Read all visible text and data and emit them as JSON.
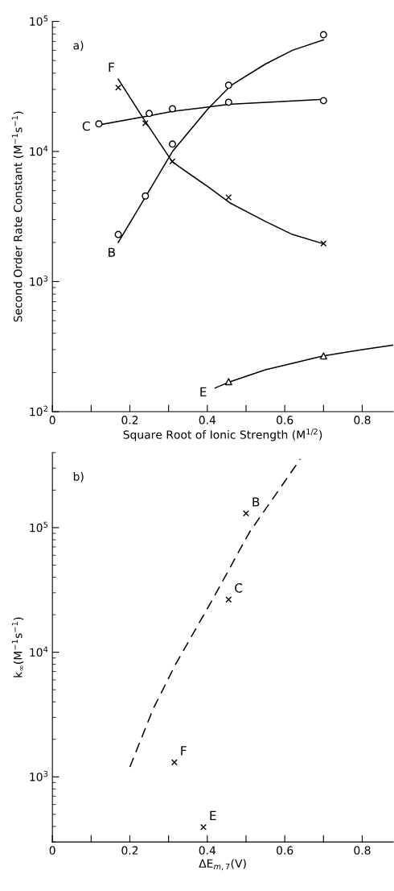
{
  "chart_data": [
    {
      "type": "scatter",
      "xlabel": "Square Root of Ionic Strength (M$^{1/2}$)",
      "ylabel": "Second Order Rate Constant (M$^{−1}$s$^{−1}$)",
      "log": "y",
      "xlim": [
        0,
        0.88
      ],
      "ylim": [
        100,
        100000
      ],
      "xticks": [
        0,
        {
          "value": 0.1,
          "label": null
        },
        0.2,
        {
          "value": 0.3,
          "label": null
        },
        0.4,
        {
          "value": 0.5,
          "label": null
        },
        0.6,
        {
          "value": 0.7,
          "label": null
        },
        0.8
      ],
      "yticks": [
        {
          "value": 100,
          "label": "10$^{2}$"
        },
        {
          "value": 1000,
          "label": "10$^{3}$"
        },
        {
          "value": 10000,
          "label": "10$^{4}$"
        },
        {
          "value": 100000,
          "label": "10$^{5}$"
        }
      ],
      "series": [
        {
          "type": "line",
          "name": "B",
          "color": "#000000",
          "line_style": "solid",
          "x": [
            0.17,
            0.25,
            0.31,
            0.4,
            0.46,
            0.55,
            0.62,
            0.7
          ],
          "values": [
            2000,
            5000,
            10000,
            21000,
            32000,
            47000,
            60000,
            72000
          ]
        },
        {
          "type": "line",
          "name": "F",
          "color": "#000000",
          "line_style": "solid",
          "x": [
            0.17,
            0.24,
            0.31,
            0.4,
            0.46,
            0.55,
            0.62,
            0.7
          ],
          "values": [
            36000,
            17000,
            8300,
            5400,
            4000,
            2900,
            2300,
            1950
          ]
        },
        {
          "type": "line",
          "name": "C",
          "color": "#000000",
          "line_style": "solid",
          "x": [
            0.12,
            0.25,
            0.31,
            0.455,
            0.7
          ],
          "values": [
            16000,
            18800,
            20300,
            23000,
            25200
          ]
        },
        {
          "type": "line",
          "name": "E",
          "color": "#000000",
          "line_style": "solid",
          "x": [
            0.42,
            0.455,
            0.55,
            0.7,
            0.8,
            0.88
          ],
          "values": [
            152,
            168,
            210,
            268,
            300,
            325
          ]
        },
        {
          "color": "#000000",
          "marker": "circle",
          "x": [
            0.17,
            0.24,
            0.31,
            0.455,
            0.7
          ],
          "values": [
            2300,
            4550,
            11400,
            32300,
            79000
          ]
        },
        {
          "color": "#000000",
          "marker": "circle",
          "x": [
            0.12,
            0.25,
            0.31,
            0.455,
            0.7
          ],
          "values": [
            16300,
            19600,
            21300,
            23900,
            24600
          ]
        },
        {
          "color": "#000000",
          "marker": "cross",
          "x": [
            0.17,
            0.24,
            0.31,
            0.455,
            0.7
          ],
          "values": [
            31000,
            16500,
            8400,
            4430,
            1960
          ]
        },
        {
          "color": "#000000",
          "marker": "triangle",
          "x": [
            0.455,
            0.7
          ],
          "values": [
            170,
            268
          ]
        }
      ],
      "annotations": [
        "a)"
      ]
    },
    {
      "type": "scatter",
      "xlabel": "ΔE$_{m,7}$(V)",
      "ylabel": "k$_{∞}$(M$^{−1}$s$^{−1}$)",
      "log": "y",
      "xlim": [
        0,
        0.88
      ],
      "ylim": [
        300,
        400000
      ],
      "xticks": [
        0,
        {
          "value": 0.1,
          "label": null
        },
        0.2,
        {
          "value": 0.3,
          "label": null
        },
        0.4,
        {
          "value": 0.5,
          "label": null
        },
        0.6,
        {
          "value": 0.7,
          "label": null
        },
        0.8
      ],
      "yticks": [
        {
          "value": 1000,
          "label": "10$^{3}$"
        },
        {
          "value": 10000,
          "label": "10$^{4}$"
        },
        {
          "value": 100000,
          "label": "10$^{5}$"
        }
      ],
      "series": [
        {
          "type": "line",
          "color": "#000000",
          "line_style": "dashed",
          "x": [
            0.2,
            0.26,
            0.318,
            0.415,
            0.508,
            0.64
          ],
          "values": [
            1200,
            3500,
            8000,
            27000,
            91000,
            355000
          ]
        },
        {
          "name": "B",
          "color": "#000000",
          "marker": "cross",
          "x": [
            0.5
          ],
          "values": [
            130000
          ]
        },
        {
          "name": "C",
          "color": "#000000",
          "marker": "cross",
          "x": [
            0.455
          ],
          "values": [
            26500
          ]
        },
        {
          "name": "F",
          "color": "#000000",
          "marker": "cross",
          "x": [
            0.315
          ],
          "values": [
            1310
          ]
        },
        {
          "name": "E",
          "color": "#000000",
          "marker": "cross",
          "x": [
            0.39
          ],
          "values": [
            395
          ]
        }
      ],
      "annotations": [
        "b)"
      ]
    }
  ]
}
